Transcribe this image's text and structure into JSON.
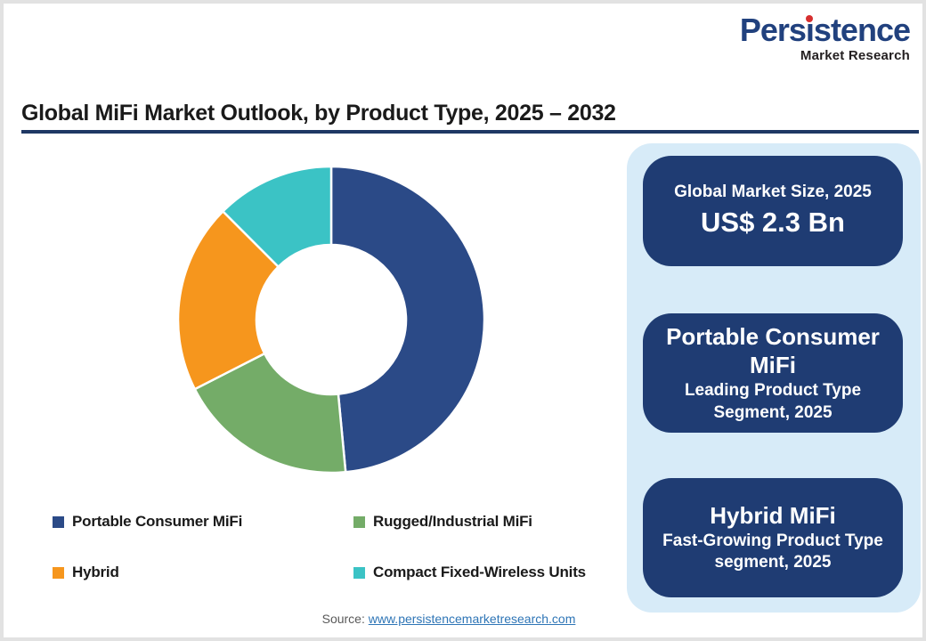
{
  "logo": {
    "word_part1": "Pers",
    "word_dotless_i": "ı",
    "word_part2": "stence",
    "subtitle": "Market Research",
    "brand_color": "#21417E",
    "dot_color": "#D62F2F"
  },
  "header": {
    "title": "Global MiFi Market Outlook, by Product Type, 2025 – 2032",
    "rule_color": "#1F3864"
  },
  "chart_data": {
    "type": "pie",
    "subtype": "donut",
    "title": "Global MiFi Market Outlook, by Product Type, 2025 – 2032",
    "categories": [
      "Portable Consumer MiFi",
      "Rugged/Industrial MiFi",
      "Hybrid",
      "Compact Fixed-Wireless Units"
    ],
    "values_pct": [
      48.5,
      19,
      20,
      12.5
    ],
    "colors": [
      "#2B4A87",
      "#74AC68",
      "#F6961D",
      "#3BC3C5"
    ],
    "start_angle_deg": 0,
    "clockwise": true,
    "inner_radius_ratio": 0.49,
    "separator_color": "#ffffff",
    "legend_position": "bottom",
    "data_labels": "none"
  },
  "sidebar": {
    "background": "#D7EBF8",
    "box_color": "#1F3C73",
    "boxes": [
      {
        "line1": "Global Market Size, 2025",
        "line2": "US$ 2.3 Bn"
      },
      {
        "line1": "Portable Consumer MiFi",
        "line2": "Leading Product Type Segment, 2025"
      },
      {
        "line1": "Hybrid MiFi",
        "line2": "Fast-Growing Product Type segment, 2025"
      }
    ]
  },
  "footer": {
    "source_label": "Source:",
    "source_link": "www.persistencemarketresearch.com"
  }
}
